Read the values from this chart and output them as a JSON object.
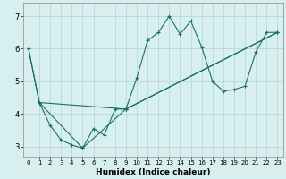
{
  "xlabel": "Humidex (Indice chaleur)",
  "bg_color": "#d8efef",
  "grid_color": "#b8d8d8",
  "line_color": "#1a6e6a",
  "xlim": [
    -0.5,
    23.5
  ],
  "ylim": [
    2.7,
    7.4
  ],
  "yticks": [
    3,
    4,
    5,
    6,
    7
  ],
  "xticks": [
    0,
    1,
    2,
    3,
    4,
    5,
    6,
    7,
    8,
    9,
    10,
    11,
    12,
    13,
    14,
    15,
    16,
    17,
    18,
    19,
    20,
    21,
    22,
    23
  ],
  "line1_x": [
    0,
    1,
    2,
    3,
    4,
    5,
    6,
    7,
    8,
    9,
    10,
    11,
    12,
    13,
    14,
    15,
    16,
    17,
    18,
    19,
    20,
    21,
    22,
    23
  ],
  "line1_y": [
    6.0,
    4.35,
    3.65,
    3.2,
    3.05,
    2.95,
    3.55,
    3.35,
    4.15,
    4.15,
    5.1,
    6.25,
    6.5,
    7.0,
    6.45,
    6.85,
    6.05,
    5.0,
    4.7,
    4.75,
    4.85,
    5.9,
    6.5,
    6.5
  ],
  "line2_x": [
    0,
    1,
    9,
    23
  ],
  "line2_y": [
    6.0,
    4.35,
    4.15,
    6.5
  ],
  "line3_x": [
    1,
    5,
    9,
    23
  ],
  "line3_y": [
    4.35,
    2.95,
    4.15,
    6.5
  ]
}
